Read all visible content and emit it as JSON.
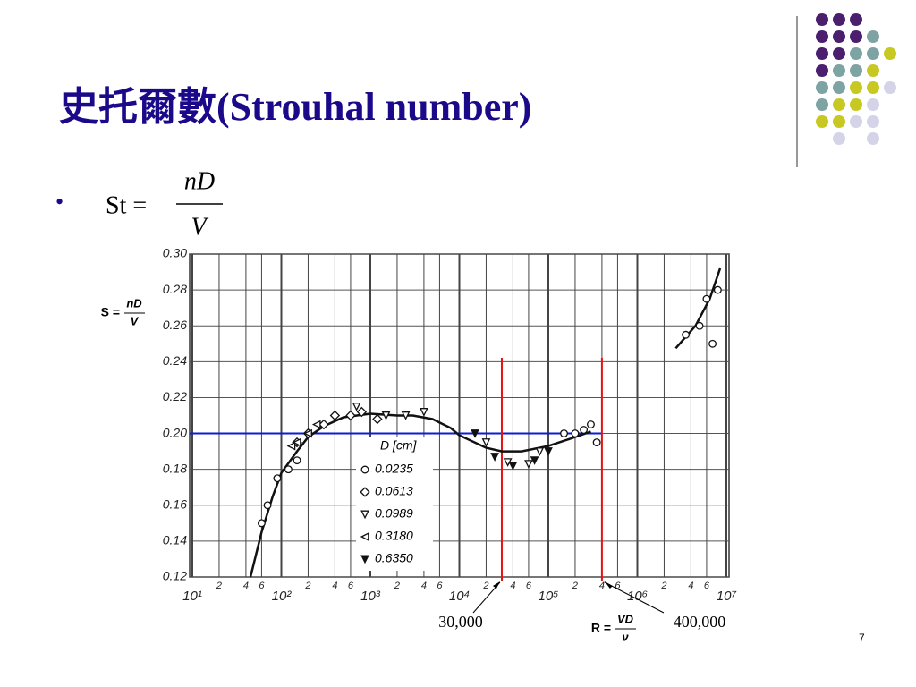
{
  "title": "史托爾數(Strouhal number)",
  "formula": {
    "lhs": "St =",
    "numerator": "nD",
    "denominator": "V"
  },
  "page_number": "7",
  "chart_data": {
    "type": "scatter",
    "y_label": {
      "lhs": "S =",
      "numerator": "nD",
      "denominator": "V"
    },
    "x_label": {
      "lhs": "R =",
      "numerator": "VD",
      "denominator": "ν"
    },
    "xscale": "log",
    "xlim": [
      10,
      10000000
    ],
    "ylim": [
      0.12,
      0.3
    ],
    "xticks": [
      {
        "value": 10,
        "label": "10¹"
      },
      {
        "value": 20,
        "label": "2"
      },
      {
        "value": 40,
        "label": "4"
      },
      {
        "value": 60,
        "label": "6"
      },
      {
        "value": 100,
        "label": "10²"
      },
      {
        "value": 200,
        "label": "2"
      },
      {
        "value": 400,
        "label": "4"
      },
      {
        "value": 600,
        "label": "6"
      },
      {
        "value": 1000,
        "label": "10³"
      },
      {
        "value": 2000,
        "label": "2"
      },
      {
        "value": 4000,
        "label": "4"
      },
      {
        "value": 6000,
        "label": "6"
      },
      {
        "value": 10000,
        "label": "10⁴"
      },
      {
        "value": 20000,
        "label": "2"
      },
      {
        "value": 40000,
        "label": "4"
      },
      {
        "value": 60000,
        "label": "6"
      },
      {
        "value": 100000,
        "label": "10⁵"
      },
      {
        "value": 200000,
        "label": "2"
      },
      {
        "value": 400000,
        "label": "4"
      },
      {
        "value": 600000,
        "label": "6"
      },
      {
        "value": 1000000,
        "label": "10⁶"
      },
      {
        "value": 2000000,
        "label": "2"
      },
      {
        "value": 4000000,
        "label": "4"
      },
      {
        "value": 6000000,
        "label": "6"
      },
      {
        "value": 10000000,
        "label": "10⁷"
      }
    ],
    "yticks": [
      0.12,
      0.14,
      0.16,
      0.18,
      {
        "value": 0.2,
        "label": "0.20"
      },
      0.22,
      0.24,
      0.26,
      0.28,
      {
        "value": 0.3,
        "label": "0.30"
      }
    ],
    "grid": true,
    "legend_title": "D [cm]",
    "series": [
      {
        "name": "0.0235",
        "marker": "circle",
        "color": "#111111",
        "x": [
          60,
          70,
          90,
          120,
          150,
          150000,
          200000,
          250000,
          300000,
          350000,
          3500000,
          5000000,
          6000000,
          7000000,
          8000000
        ],
        "values": [
          0.15,
          0.16,
          0.175,
          0.18,
          0.185,
          0.2,
          0.2,
          0.202,
          0.205,
          0.195,
          0.255,
          0.26,
          0.275,
          0.25,
          0.28
        ]
      },
      {
        "name": "0.0613",
        "marker": "diamond",
        "color": "#111111",
        "x": [
          150,
          200,
          300,
          400,
          600,
          800,
          1200
        ],
        "values": [
          0.195,
          0.2,
          0.205,
          0.21,
          0.21,
          0.212,
          0.208
        ]
      },
      {
        "name": "0.0989",
        "marker": "triangle-down",
        "color": "#111111",
        "x": [
          700,
          1500,
          2500,
          4000,
          20000,
          35000,
          60000,
          80000
        ],
        "values": [
          0.215,
          0.21,
          0.21,
          0.212,
          0.195,
          0.184,
          0.183,
          0.19
        ]
      },
      {
        "name": "0.3180",
        "marker": "triangle-left",
        "color": "#111111",
        "x": [
          130,
          150,
          200,
          250
        ],
        "values": [
          0.193,
          0.195,
          0.2,
          0.205
        ]
      },
      {
        "name": "0.6350",
        "marker": "triangle-down-bar",
        "color": "#111111",
        "x": [
          15000,
          25000,
          40000,
          70000,
          100000
        ],
        "values": [
          0.2,
          0.187,
          0.182,
          0.185,
          0.19
        ]
      }
    ],
    "curve": {
      "color": "#111111",
      "x": [
        45,
        60,
        80,
        100,
        150,
        200,
        300,
        500,
        1000,
        2000,
        3000,
        5000,
        8000,
        10000,
        20000,
        30000,
        50000,
        100000,
        200000,
        300000,
        null,
        2700000,
        4500000,
        6500000,
        8500000
      ],
      "values": [
        0.12,
        0.145,
        0.165,
        0.178,
        0.19,
        0.198,
        0.204,
        0.209,
        0.211,
        0.21,
        0.21,
        0.208,
        0.203,
        0.199,
        0.192,
        0.19,
        0.19,
        0.193,
        0.198,
        0.201,
        null,
        0.2475,
        0.26,
        0.275,
        0.292
      ]
    },
    "hlines": [
      {
        "value": 0.2,
        "color": "#0a1ed2"
      }
    ],
    "vlines": [
      {
        "value": 30000,
        "label": "30,000",
        "color": "#e81010"
      },
      {
        "value": 400000,
        "label": "400,000",
        "color": "#e81010"
      }
    ]
  }
}
